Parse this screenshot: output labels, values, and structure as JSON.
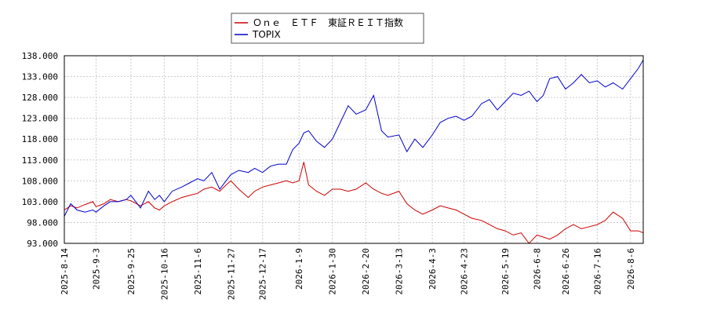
{
  "chart_data": {
    "type": "line",
    "title": "",
    "xlabel": "",
    "ylabel": "",
    "ylim": [
      93.0,
      138.0
    ],
    "yticks": [
      "138.000",
      "133.000",
      "128.000",
      "123.000",
      "118.000",
      "113.000",
      "108.000",
      "103.000",
      "98.000",
      "93.000"
    ],
    "xticks": [
      "2025-8-14",
      "2025-9-3",
      "2025-9-25",
      "2025-10-16",
      "2025-11-6",
      "2025-11-27",
      "2025-12-17",
      "2026-1-9",
      "2026-1-30",
      "2026-2-20",
      "2026-3-13",
      "2026-4-3",
      "2026-4-23",
      "2026-5-19",
      "2026-6-8",
      "2026-6-26",
      "2026-7-16",
      "2026-8-6"
    ],
    "grid": true,
    "legend_position": "top-center",
    "series": [
      {
        "name": "Ｏｎｅ　ＥＴＦ　東証ＲＥＩＴ指数",
        "color": "#cc0000",
        "points": [
          [
            "2025-8-14",
            101.0
          ],
          [
            "2025-8-18",
            102.0
          ],
          [
            "2025-8-22",
            101.5
          ],
          [
            "2025-8-27",
            102.3
          ],
          [
            "2025-9-1",
            103.0
          ],
          [
            "2025-9-3",
            101.8
          ],
          [
            "2025-9-8",
            102.5
          ],
          [
            "2025-9-12",
            103.5
          ],
          [
            "2025-9-17",
            103.0
          ],
          [
            "2025-9-22",
            103.5
          ],
          [
            "2025-9-25",
            103.2
          ],
          [
            "2025-10-1",
            102.0
          ],
          [
            "2025-10-6",
            103.0
          ],
          [
            "2025-10-10",
            101.5
          ],
          [
            "2025-10-13",
            101.0
          ],
          [
            "2025-10-16",
            102.0
          ],
          [
            "2025-10-21",
            103.0
          ],
          [
            "2025-10-27",
            104.0
          ],
          [
            "2025-11-1",
            104.5
          ],
          [
            "2025-11-6",
            105.0
          ],
          [
            "2025-11-10",
            106.0
          ],
          [
            "2025-11-15",
            106.5
          ],
          [
            "2025-11-20",
            105.5
          ],
          [
            "2025-11-24",
            107.0
          ],
          [
            "2025-11-27",
            108.0
          ],
          [
            "2025-12-2",
            106.0
          ],
          [
            "2025-12-8",
            104.0
          ],
          [
            "2025-12-12",
            105.5
          ],
          [
            "2025-12-17",
            106.5
          ],
          [
            "2025-12-22",
            107.0
          ],
          [
            "2025-12-27",
            107.5
          ],
          [
            "2026-1-1",
            108.0
          ],
          [
            "2026-1-5",
            107.5
          ],
          [
            "2026-1-9",
            108.0
          ],
          [
            "2026-1-12",
            112.5
          ],
          [
            "2026-1-15",
            107.0
          ],
          [
            "2026-1-20",
            105.5
          ],
          [
            "2026-1-25",
            104.5
          ],
          [
            "2026-1-30",
            106.0
          ],
          [
            "2026-2-4",
            106.0
          ],
          [
            "2026-2-9",
            105.5
          ],
          [
            "2026-2-14",
            106.0
          ],
          [
            "2026-2-20",
            107.5
          ],
          [
            "2026-2-25",
            106.0
          ],
          [
            "2026-3-2",
            105.0
          ],
          [
            "2026-3-6",
            104.5
          ],
          [
            "2026-3-13",
            105.5
          ],
          [
            "2026-3-18",
            102.5
          ],
          [
            "2026-3-23",
            101.0
          ],
          [
            "2026-3-28",
            100.0
          ],
          [
            "2026-4-3",
            101.0
          ],
          [
            "2026-4-8",
            102.0
          ],
          [
            "2026-4-13",
            101.5
          ],
          [
            "2026-4-18",
            101.0
          ],
          [
            "2026-4-23",
            100.0
          ],
          [
            "2026-4-28",
            99.0
          ],
          [
            "2026-5-4",
            98.5
          ],
          [
            "2026-5-9",
            97.5
          ],
          [
            "2026-5-14",
            96.5
          ],
          [
            "2026-5-19",
            96.0
          ],
          [
            "2026-5-24",
            95.0
          ],
          [
            "2026-5-29",
            95.5
          ],
          [
            "2026-6-3",
            93.0
          ],
          [
            "2026-6-8",
            95.0
          ],
          [
            "2026-6-12",
            94.5
          ],
          [
            "2026-6-16",
            94.0
          ],
          [
            "2026-6-21",
            95.0
          ],
          [
            "2026-6-26",
            96.5
          ],
          [
            "2026-7-1",
            97.5
          ],
          [
            "2026-7-6",
            96.5
          ],
          [
            "2026-7-11",
            97.0
          ],
          [
            "2026-7-16",
            97.5
          ],
          [
            "2026-7-21",
            98.5
          ],
          [
            "2026-7-26",
            100.5
          ],
          [
            "2026-8-1",
            99.0
          ],
          [
            "2026-8-6",
            96.0
          ],
          [
            "2026-8-11",
            96.0
          ],
          [
            "2026-8-14",
            95.5
          ]
        ]
      },
      {
        "name": "TOPIX",
        "color": "#0000cc",
        "points": [
          [
            "2025-8-14",
            99.5
          ],
          [
            "2025-8-18",
            102.5
          ],
          [
            "2025-8-22",
            101.0
          ],
          [
            "2025-8-27",
            100.5
          ],
          [
            "2025-9-1",
            101.0
          ],
          [
            "2025-9-3",
            100.5
          ],
          [
            "2025-9-8",
            102.0
          ],
          [
            "2025-9-12",
            103.0
          ],
          [
            "2025-9-17",
            103.0
          ],
          [
            "2025-9-22",
            103.5
          ],
          [
            "2025-9-25",
            104.5
          ],
          [
            "2025-10-1",
            101.5
          ],
          [
            "2025-10-6",
            105.5
          ],
          [
            "2025-10-10",
            103.5
          ],
          [
            "2025-10-13",
            104.5
          ],
          [
            "2025-10-16",
            103.0
          ],
          [
            "2025-10-21",
            105.5
          ],
          [
            "2025-10-27",
            106.5
          ],
          [
            "2025-11-1",
            107.5
          ],
          [
            "2025-11-6",
            108.5
          ],
          [
            "2025-11-10",
            108.0
          ],
          [
            "2025-11-15",
            110.0
          ],
          [
            "2025-11-20",
            106.0
          ],
          [
            "2025-11-24",
            108.0
          ],
          [
            "2025-11-27",
            109.5
          ],
          [
            "2025-12-2",
            110.5
          ],
          [
            "2025-12-8",
            110.0
          ],
          [
            "2025-12-12",
            111.0
          ],
          [
            "2025-12-17",
            110.0
          ],
          [
            "2025-12-22",
            111.5
          ],
          [
            "2025-12-27",
            112.0
          ],
          [
            "2026-1-1",
            112.0
          ],
          [
            "2026-1-5",
            115.5
          ],
          [
            "2026-1-9",
            117.0
          ],
          [
            "2026-1-12",
            119.5
          ],
          [
            "2026-1-15",
            120.0
          ],
          [
            "2026-1-20",
            117.5
          ],
          [
            "2026-1-25",
            116.0
          ],
          [
            "2026-1-30",
            118.0
          ],
          [
            "2026-2-4",
            122.0
          ],
          [
            "2026-2-9",
            126.0
          ],
          [
            "2026-2-14",
            124.0
          ],
          [
            "2026-2-20",
            125.0
          ],
          [
            "2026-2-25",
            128.5
          ],
          [
            "2026-3-2",
            120.0
          ],
          [
            "2026-3-6",
            118.5
          ],
          [
            "2026-3-13",
            119.0
          ],
          [
            "2026-3-18",
            115.0
          ],
          [
            "2026-3-23",
            118.0
          ],
          [
            "2026-3-28",
            116.0
          ],
          [
            "2026-4-3",
            119.0
          ],
          [
            "2026-4-8",
            122.0
          ],
          [
            "2026-4-13",
            123.0
          ],
          [
            "2026-4-18",
            123.5
          ],
          [
            "2026-4-23",
            122.5
          ],
          [
            "2026-4-28",
            123.5
          ],
          [
            "2026-5-4",
            126.5
          ],
          [
            "2026-5-9",
            127.5
          ],
          [
            "2026-5-14",
            125.0
          ],
          [
            "2026-5-19",
            127.0
          ],
          [
            "2026-5-24",
            129.0
          ],
          [
            "2026-5-29",
            128.5
          ],
          [
            "2026-6-3",
            129.5
          ],
          [
            "2026-6-8",
            127.0
          ],
          [
            "2026-6-12",
            128.5
          ],
          [
            "2026-6-16",
            132.5
          ],
          [
            "2026-6-21",
            133.0
          ],
          [
            "2026-6-26",
            130.0
          ],
          [
            "2026-7-1",
            131.5
          ],
          [
            "2026-7-6",
            133.5
          ],
          [
            "2026-7-11",
            131.5
          ],
          [
            "2026-7-16",
            132.0
          ],
          [
            "2026-7-21",
            130.5
          ],
          [
            "2026-7-26",
            131.5
          ],
          [
            "2026-8-1",
            130.0
          ],
          [
            "2026-8-6",
            132.5
          ],
          [
            "2026-8-11",
            135.0
          ],
          [
            "2026-8-14",
            137.0
          ]
        ]
      }
    ]
  }
}
